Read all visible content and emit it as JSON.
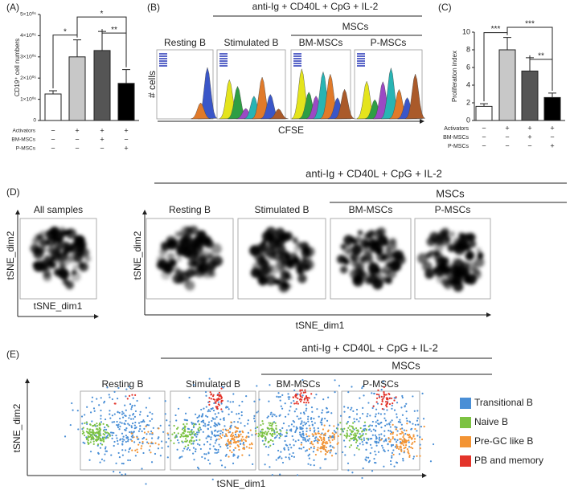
{
  "chart_data": [
    {
      "type": "bar",
      "panel": "(A)",
      "ylabel": "CD19⁺ cell numbers",
      "categories": [
        null,
        null,
        null,
        null
      ],
      "values": [
        1250000,
        3000000,
        3300000,
        1750000
      ],
      "errors": [
        150000,
        800000,
        900000,
        650000
      ],
      "colors": [
        "#ffffff",
        "#c8c8c8",
        "#555555",
        "#000000"
      ],
      "ylim": [
        0,
        5000000
      ],
      "yticks": [
        0,
        {
          "value": 1000000,
          "label": "1×10⁰⁶"
        },
        {
          "value": 2000000,
          "label": "2×10⁰⁶"
        },
        {
          "value": 3000000,
          "label": "3×10⁰⁶"
        },
        {
          "value": 4000000,
          "label": "4×10⁰⁶"
        },
        {
          "value": 5000000,
          "label": "5×10⁰⁶"
        }
      ],
      "annotations": [
        {
          "text": "*",
          "bars": [
            0,
            1
          ]
        },
        {
          "text": "*",
          "bars": [
            1,
            3
          ]
        },
        {
          "text": "**",
          "bars": [
            2,
            3
          ]
        }
      ],
      "condition_rows": [
        {
          "name": "Activators",
          "marks": [
            "−",
            "+",
            "+",
            "+"
          ]
        },
        {
          "name": "BM-MSCs",
          "marks": [
            "−",
            "−",
            "+",
            "−"
          ]
        },
        {
          "name": "P-MSCs",
          "marks": [
            "−",
            "−",
            "−",
            "+"
          ]
        }
      ]
    },
    {
      "type": "bar",
      "panel": "(C)",
      "ylabel": "Proliferation index",
      "categories": [
        null,
        null,
        null,
        null
      ],
      "values": [
        1.6,
        8.0,
        5.6,
        2.6
      ],
      "errors": [
        0.3,
        1.4,
        1.5,
        0.5
      ],
      "colors": [
        "#ffffff",
        "#c8c8c8",
        "#555555",
        "#000000"
      ],
      "ylim": [
        0,
        10
      ],
      "yticks": [
        0,
        2,
        4,
        6,
        8,
        10
      ],
      "annotations": [
        {
          "text": "***",
          "bars": [
            0,
            1
          ]
        },
        {
          "text": "***",
          "bars": [
            1,
            3
          ]
        },
        {
          "text": "**",
          "bars": [
            2,
            3
          ]
        }
      ],
      "condition_rows": [
        {
          "name": "Activators",
          "marks": [
            "−",
            "+",
            "+",
            "+"
          ]
        },
        {
          "name": "BM-MSCs",
          "marks": [
            "−",
            "−",
            "+",
            "−"
          ]
        },
        {
          "name": "P-MSCs",
          "marks": [
            "−",
            "−",
            "−",
            "+"
          ]
        }
      ]
    }
  ],
  "panel_b": {
    "label": "(B)",
    "header": "anti-Ig + CD40L + CpG + IL-2",
    "group": "MSCs",
    "titles": [
      "Resting B",
      "Stimulated B",
      "BM-MSCs",
      "P-MSCs"
    ],
    "ylabel": "# cells",
    "xlabel": "CFSE"
  },
  "panel_d": {
    "label": "(D)",
    "header": "anti-Ig + CD40L + CpG + IL-2",
    "group": "MSCs",
    "titles": [
      "All samples",
      "Resting B",
      "Stimulated B",
      "BM-MSCs",
      "P-MSCs"
    ],
    "ylabel": "tSNE_dim2",
    "xlabel": "tSNE_dim1"
  },
  "panel_e": {
    "label": "(E)",
    "header": "anti-Ig + CD40L + CpG + IL-2",
    "group": "MSCs",
    "titles": [
      "Resting B",
      "Stimulated B",
      "BM-MSCs",
      "P-MSCs"
    ],
    "ylabel": "tSNE_dim2",
    "xlabel": "tSNE_dim1",
    "legend": [
      {
        "name": "Transitional  B",
        "color": "#4a8fd6"
      },
      {
        "name": "Naive  B",
        "color": "#7cc242"
      },
      {
        "name": "Pre-GC like  B",
        "color": "#f39434"
      },
      {
        "name": "PB and memory",
        "color": "#e3342a"
      }
    ]
  }
}
